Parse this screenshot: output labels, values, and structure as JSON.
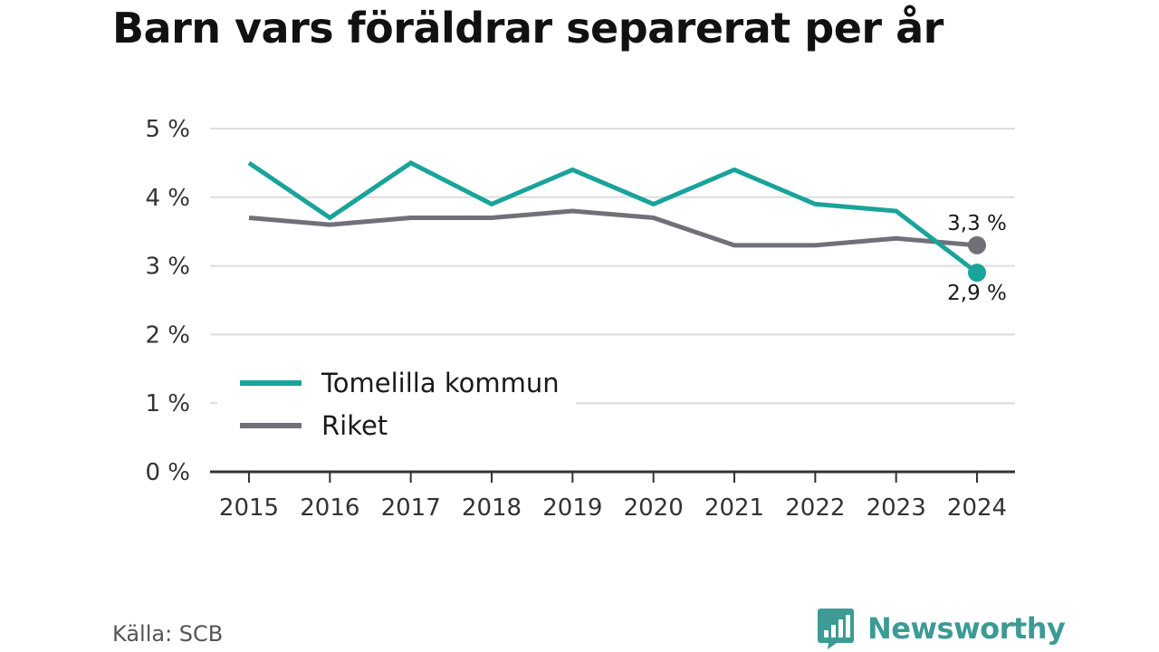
{
  "title": "Barn vars föräldrar separerat per år",
  "source": "Källa: SCB",
  "brand": {
    "name": "Newsworthy",
    "icon": "bar-chart-speech-bubble-icon"
  },
  "colors": {
    "primary": "#1aa39a",
    "secondary": "#717079",
    "brand": "#3d9a94"
  },
  "chart_data": {
    "type": "line",
    "x": [
      "2015",
      "2016",
      "2017",
      "2018",
      "2019",
      "2020",
      "2021",
      "2022",
      "2023",
      "2024"
    ],
    "series": [
      {
        "name": "Tomelilla kommun",
        "values": [
          4.5,
          3.7,
          4.5,
          3.9,
          4.4,
          3.9,
          4.4,
          3.9,
          3.8,
          2.9
        ],
        "color": "#1aa39a",
        "end_label": "2,9 %"
      },
      {
        "name": "Riket",
        "values": [
          3.7,
          3.6,
          3.7,
          3.7,
          3.8,
          3.7,
          3.3,
          3.3,
          3.4,
          3.3
        ],
        "color": "#717079",
        "end_label": "3,3 %"
      }
    ],
    "ylim": [
      0,
      5
    ],
    "yticks": [
      0,
      1,
      2,
      3,
      4,
      5
    ],
    "ytick_labels": [
      "0 %",
      "1 %",
      "2 %",
      "3 %",
      "4 %",
      "5 %"
    ],
    "grid": true,
    "legend": "bottom-left"
  }
}
